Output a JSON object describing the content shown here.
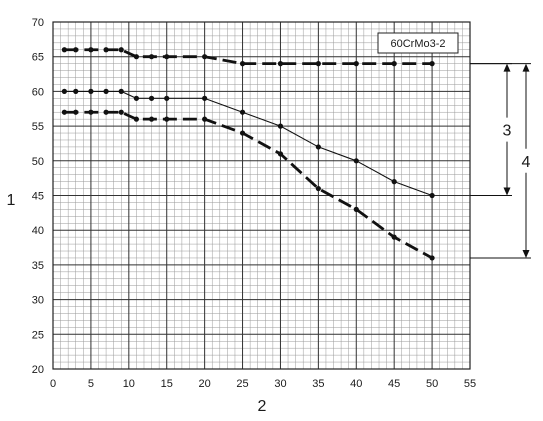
{
  "chart_data": {
    "type": "line",
    "title": "60CrMo3-2",
    "xlabel": "2",
    "ylabel": "1",
    "xlim": [
      0,
      55
    ],
    "ylim": [
      20,
      70
    ],
    "x_ticks": [
      0,
      5,
      10,
      15,
      20,
      25,
      30,
      35,
      40,
      45,
      50,
      55
    ],
    "y_ticks": [
      20,
      25,
      30,
      35,
      40,
      45,
      50,
      55,
      60,
      65,
      70
    ],
    "grid": true,
    "series": [
      {
        "style": "dashed-thick",
        "x": [
          1.5,
          3,
          5,
          7,
          9,
          11,
          13,
          15,
          20,
          25,
          30,
          35,
          40,
          45,
          50
        ],
        "y": [
          66,
          66,
          66,
          66,
          66,
          65,
          65,
          65,
          65,
          64,
          64,
          64,
          64,
          64,
          64
        ]
      },
      {
        "style": "solid-thin",
        "x": [
          1.5,
          3,
          5,
          7,
          9,
          11,
          13,
          15,
          20,
          25,
          30,
          35,
          40,
          45,
          50
        ],
        "y": [
          60,
          60,
          60,
          60,
          60,
          59,
          59,
          59,
          59,
          57,
          55,
          52,
          50,
          47,
          45
        ]
      },
      {
        "style": "dashed-thick",
        "x": [
          1.5,
          3,
          5,
          7,
          9,
          11,
          13,
          15,
          20,
          25,
          30,
          35,
          40,
          45,
          50
        ],
        "y": [
          57,
          57,
          57,
          57,
          57,
          56,
          56,
          56,
          56,
          54,
          51,
          46,
          43,
          39,
          36
        ]
      }
    ],
    "annotations": [
      {
        "label": "3",
        "y_top": 64,
        "y_bottom": 45
      },
      {
        "label": "4",
        "y_top": 64,
        "y_bottom": 36
      }
    ]
  }
}
